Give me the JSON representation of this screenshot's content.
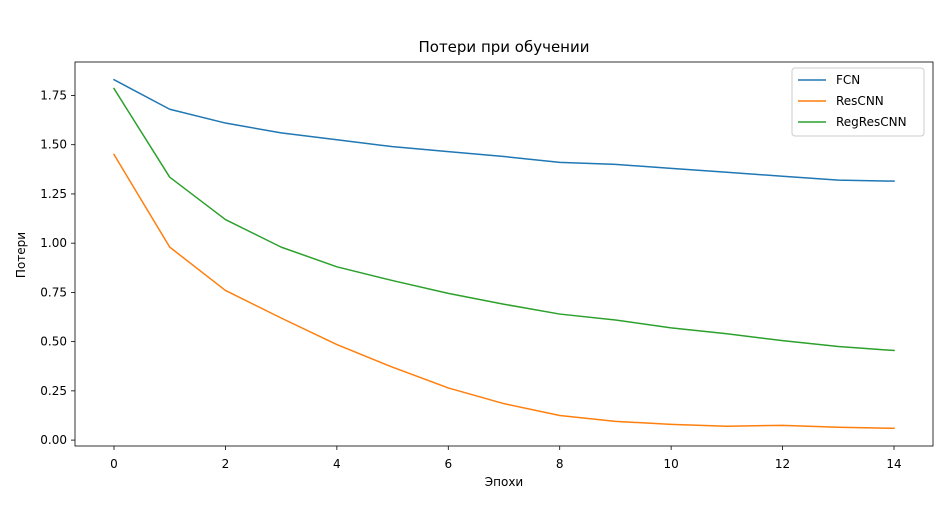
{
  "chart_data": {
    "type": "line",
    "title": "Потери при обучении",
    "xlabel": "Эпохи",
    "ylabel": "Потери",
    "x": [
      0,
      1,
      2,
      3,
      4,
      5,
      6,
      7,
      8,
      9,
      10,
      11,
      12,
      13,
      14
    ],
    "xlim": [
      -0.7,
      14.7
    ],
    "ylim": [
      -0.03,
      1.92
    ],
    "xticks": [
      0,
      2,
      4,
      6,
      8,
      10,
      12,
      14
    ],
    "xtick_labels": [
      "0",
      "2",
      "4",
      "6",
      "8",
      "10",
      "12",
      "14"
    ],
    "yticks": [
      0.0,
      0.25,
      0.5,
      0.75,
      1.0,
      1.25,
      1.5,
      1.75
    ],
    "ytick_labels": [
      "0.00",
      "0.25",
      "0.50",
      "0.75",
      "1.00",
      "1.25",
      "1.50",
      "1.75"
    ],
    "grid": false,
    "legend_position": "top-right",
    "series": [
      {
        "name": "FCN",
        "color": "#1f77b4",
        "values": [
          1.83,
          1.68,
          1.61,
          1.56,
          1.525,
          1.49,
          1.465,
          1.44,
          1.41,
          1.4,
          1.38,
          1.36,
          1.34,
          1.32,
          1.315
        ]
      },
      {
        "name": "ResCNN",
        "color": "#ff7f0e",
        "values": [
          1.45,
          0.98,
          0.76,
          0.62,
          0.485,
          0.37,
          0.265,
          0.185,
          0.125,
          0.095,
          0.08,
          0.07,
          0.075,
          0.065,
          0.06
        ]
      },
      {
        "name": "RegResCNN",
        "color": "#2ca02c",
        "values": [
          1.785,
          1.335,
          1.12,
          0.98,
          0.88,
          0.81,
          0.745,
          0.69,
          0.64,
          0.61,
          0.57,
          0.54,
          0.505,
          0.475,
          0.455
        ]
      }
    ]
  }
}
